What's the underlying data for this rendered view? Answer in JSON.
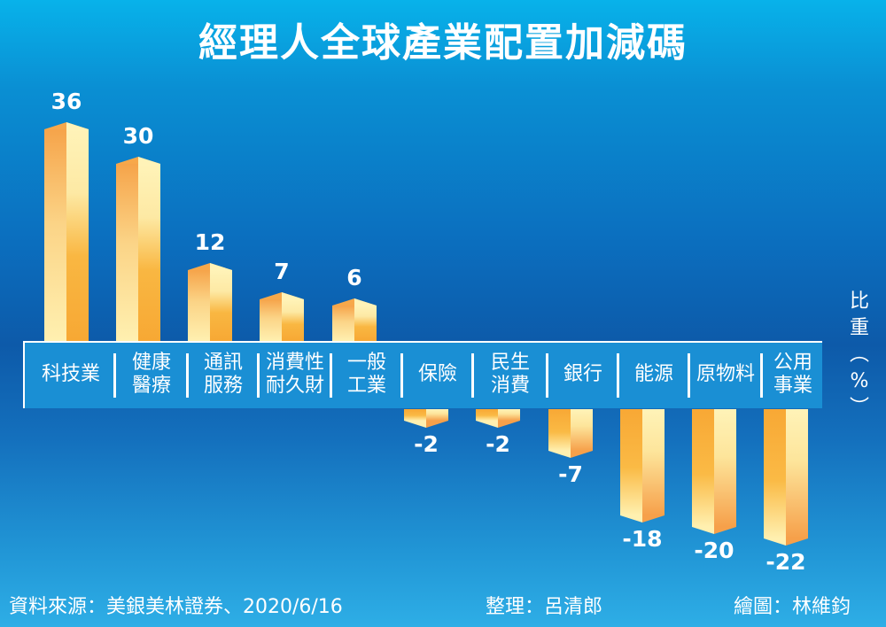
{
  "title": "經理人全球產業配置加減碼",
  "y_axis_label": [
    "比",
    "重",
    "︵",
    "%",
    "︶"
  ],
  "footer": {
    "source": "資料來源：美銀美林證券、2020/6/16",
    "editor": "整理：呂清郎",
    "illustrator": "繪圖：林維鈞"
  },
  "colors": {
    "background_top": "#08b2ea",
    "background_mid": "#0d5aa9",
    "bar_light": "#fff0b0",
    "bar_dark": "#f7a834",
    "band": "#1a8fd4"
  },
  "chart_data": {
    "type": "bar",
    "title": "經理人全球產業配置加減碼",
    "xlabel": "",
    "ylabel": "比重(%)",
    "categories": [
      "科技業",
      "健康醫療",
      "通訊服務",
      "消費性耐久財",
      "一般工業",
      "保險",
      "民生消費",
      "銀行",
      "能源",
      "原物料",
      "公用事業"
    ],
    "category_lines": [
      [
        "科技業"
      ],
      [
        "健康",
        "醫療"
      ],
      [
        "通訊",
        "服務"
      ],
      [
        "消費性",
        "耐久財"
      ],
      [
        "一般",
        "工業"
      ],
      [
        "保險"
      ],
      [
        "民生",
        "消費"
      ],
      [
        "銀行"
      ],
      [
        "能源"
      ],
      [
        "原物料"
      ],
      [
        "公用",
        "事業"
      ]
    ],
    "values": [
      36,
      30,
      12,
      7,
      6,
      -2,
      -2,
      -7,
      -18,
      -20,
      -22
    ],
    "value_labels": [
      "36",
      "30",
      "12",
      "7",
      "6",
      "-2",
      "-2",
      "-7",
      "-18",
      "-20",
      "-22"
    ],
    "ylim": [
      -22,
      36
    ],
    "grid": false,
    "legend": "none",
    "source": "資料來源：美銀美林證券、2020/6/16"
  }
}
